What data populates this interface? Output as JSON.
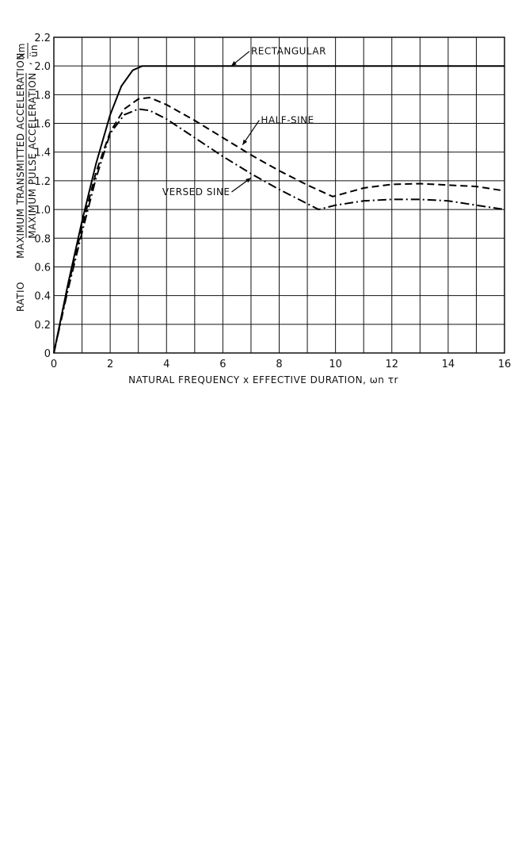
{
  "chart_data": {
    "type": "line",
    "title": "",
    "xlabel": "NATURAL FREQUENCY x EFFECTIVE DURATION, ωn τr",
    "ylabel": {
      "prefix": "RATIO",
      "numerator": "MAXIMUM TRANSMITTED ACCELERATION",
      "denominator": "MAXIMUM PULSE ACCELERATION",
      "ratio_numerator": "ẍm",
      "ratio_denominator": "ün"
    },
    "xlim": [
      0,
      16
    ],
    "ylim": [
      0,
      2.2
    ],
    "xticks": [
      "0",
      "2",
      "4",
      "6",
      "8",
      "10",
      "12",
      "14",
      "16"
    ],
    "yticks": [
      "0",
      "0.2",
      "0.4",
      "0.6",
      "0.8",
      "1.0",
      "1.2",
      "1.4",
      "1.6",
      "1.8",
      "2.0",
      "2.2"
    ],
    "grid": true,
    "series": [
      {
        "name": "RECTANGULAR",
        "style": "solid",
        "x": [
          0,
          0.5,
          1.0,
          1.5,
          2.0,
          2.4,
          2.8,
          3.14,
          4,
          6,
          8,
          10,
          12,
          14,
          16
        ],
        "y": [
          0,
          0.48,
          0.92,
          1.32,
          1.66,
          1.86,
          1.97,
          2.0,
          2.0,
          2.0,
          2.0,
          2.0,
          2.0,
          2.0,
          2.0
        ]
      },
      {
        "name": "HALF-SINE",
        "style": "dashed",
        "x": [
          0,
          0.5,
          1.0,
          1.5,
          2.0,
          2.5,
          3.0,
          3.4,
          4,
          5,
          6,
          7,
          8,
          9,
          9.9,
          11,
          12,
          13,
          14,
          15,
          16
        ],
        "y": [
          0,
          0.46,
          0.88,
          1.26,
          1.54,
          1.7,
          1.77,
          1.78,
          1.73,
          1.62,
          1.5,
          1.38,
          1.27,
          1.17,
          1.09,
          1.15,
          1.175,
          1.18,
          1.17,
          1.16,
          1.13
        ]
      },
      {
        "name": "VERSED SINE",
        "style": "dashdot",
        "x": [
          0,
          0.5,
          1.0,
          1.5,
          2.0,
          2.5,
          3.0,
          3.4,
          4,
          5,
          6,
          7,
          8,
          9,
          9.4,
          10,
          11,
          12,
          13,
          14,
          15,
          16
        ],
        "y": [
          0,
          0.44,
          0.84,
          1.22,
          1.53,
          1.66,
          1.7,
          1.69,
          1.63,
          1.5,
          1.37,
          1.25,
          1.14,
          1.04,
          1.0,
          1.03,
          1.06,
          1.07,
          1.07,
          1.06,
          1.03,
          1.0
        ]
      }
    ],
    "annotations": [
      {
        "text": "RECTANGULAR",
        "x": 7.0,
        "y": 2.08,
        "arrow_to": [
          6.3,
          2.0
        ]
      },
      {
        "text": "HALF-SINE",
        "x": 7.35,
        "y": 1.6,
        "arrow_to": [
          6.7,
          1.45
        ]
      },
      {
        "text": "VERSED SINE",
        "x": 3.85,
        "y": 1.1,
        "arrow_to": [
          7.0,
          1.22
        ]
      }
    ]
  }
}
